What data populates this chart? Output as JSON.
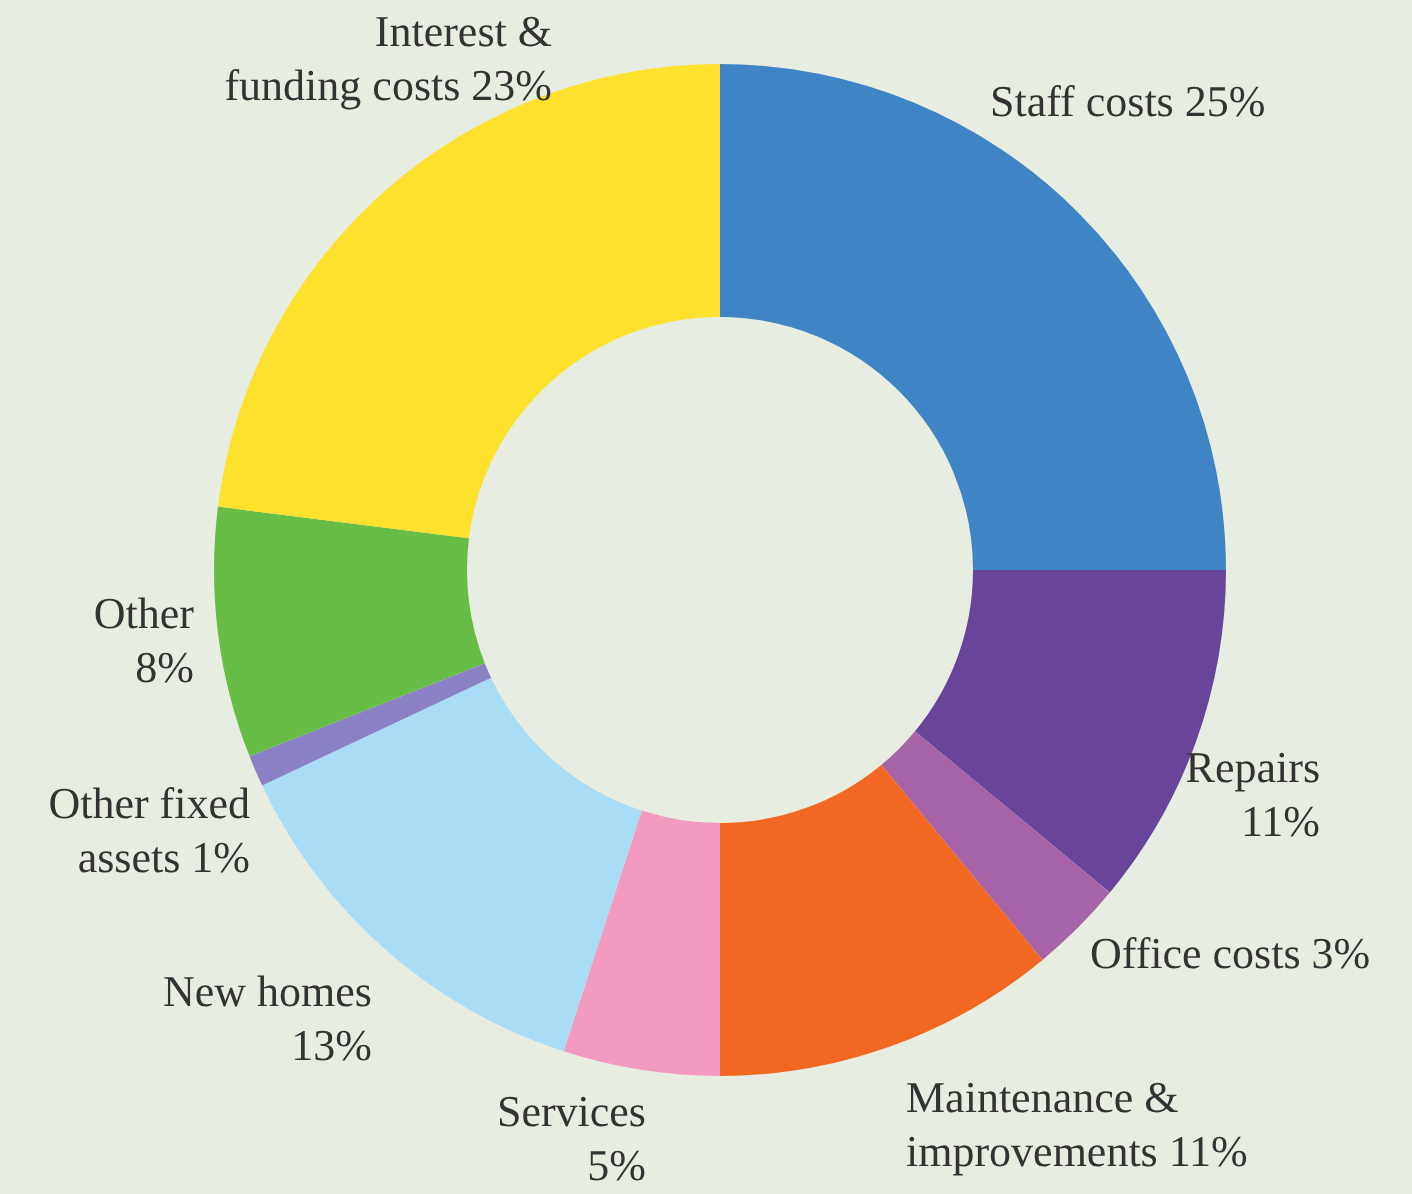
{
  "chart_data": {
    "type": "donut",
    "categories": [
      "Staff costs",
      "Repairs",
      "Office costs",
      "Maintenance & improvements",
      "Services",
      "New homes",
      "Other fixed assets",
      "Other",
      "Interest & funding costs"
    ],
    "values": [
      25,
      11,
      3,
      11,
      5,
      13,
      1,
      8,
      23
    ],
    "value_labels": [
      "25%",
      "11%",
      "3%",
      "11%",
      "5%",
      "13%",
      "1%",
      "8%",
      "23%"
    ],
    "colors": [
      "#3f85c6",
      "#68459b",
      "#a763a8",
      "#f26722",
      "#f39ac0",
      "#a9dcf5",
      "#8a80c6",
      "#67bd45",
      "#fde12d"
    ],
    "legend": false
  }
}
